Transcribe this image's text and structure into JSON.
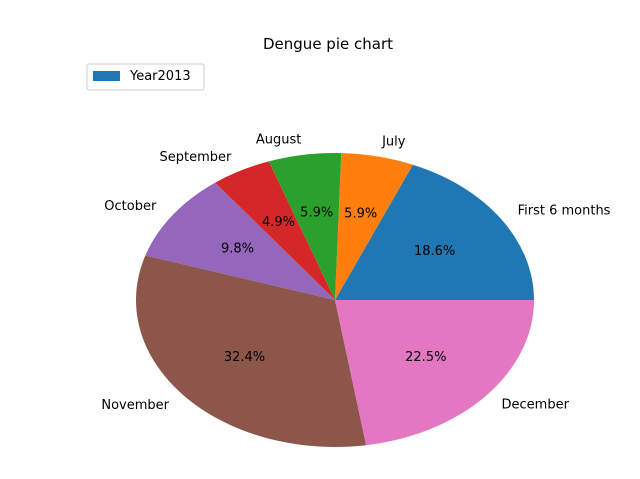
{
  "chart_data": {
    "type": "pie",
    "title": "Dengue pie chart",
    "legend": {
      "entries": [
        "Year2013"
      ],
      "placement": "top-left"
    },
    "slices": [
      {
        "label": "First 6 months",
        "percent": 18.6,
        "pct_text": "18.6%",
        "color": "#1f77b4"
      },
      {
        "label": "July",
        "percent": 5.9,
        "pct_text": "5.9%",
        "color": "#ff7f0e"
      },
      {
        "label": "August",
        "percent": 5.9,
        "pct_text": "5.9%",
        "color": "#2ca02c"
      },
      {
        "label": "September",
        "percent": 4.9,
        "pct_text": "4.9%",
        "color": "#d62728"
      },
      {
        "label": "October",
        "percent": 9.8,
        "pct_text": "9.8%",
        "color": "#9467bd"
      },
      {
        "label": "November",
        "percent": 32.4,
        "pct_text": "32.4%",
        "color": "#8c564b"
      },
      {
        "label": "December",
        "percent": 22.5,
        "pct_text": "22.5%",
        "color": "#e377c2"
      }
    ]
  }
}
